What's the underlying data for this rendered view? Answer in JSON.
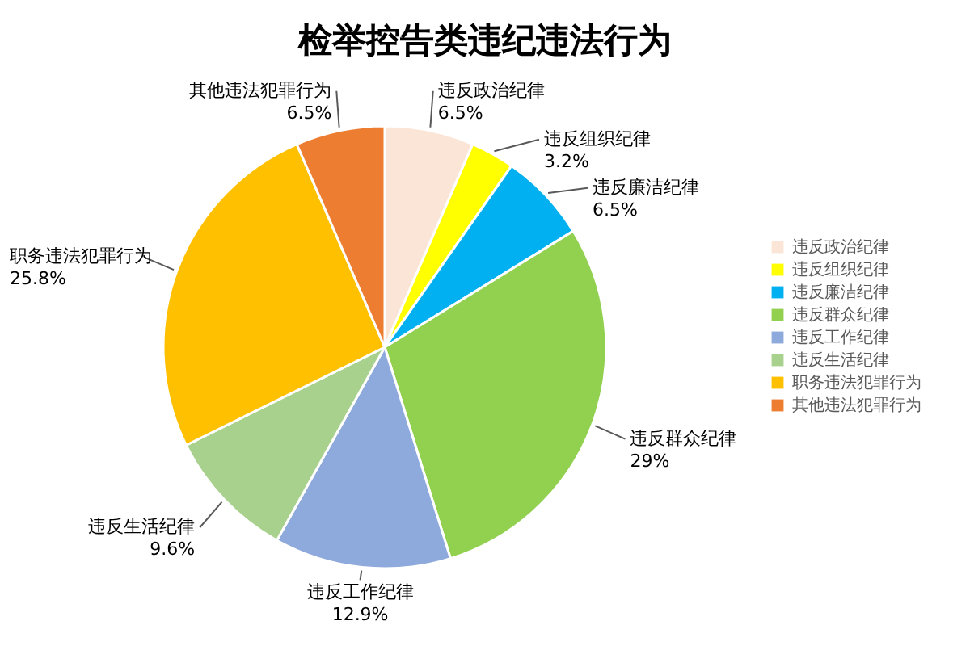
{
  "chart_data": {
    "type": "pie",
    "title": "检举控告类违纪违法行为",
    "categories": [
      "违反政治纪律",
      "违反组织纪律",
      "违反廉洁纪律",
      "违反群众纪律",
      "违反工作纪律",
      "违反生活纪律",
      "职务违法犯罪行为",
      "其他违法犯罪行为"
    ],
    "values": [
      6.5,
      3.2,
      6.5,
      29,
      12.9,
      9.6,
      25.8,
      6.5
    ],
    "colors": [
      "#fbe5d6",
      "#ffff00",
      "#00b0f0",
      "#92d050",
      "#8ea9db",
      "#a9d18e",
      "#ffc000",
      "#ed7d31"
    ],
    "value_labels": [
      "6.5%",
      "3.2%",
      "6.5%",
      "29%",
      "12.9%",
      "9.6%",
      "25.8%",
      "6.5%"
    ],
    "legend": "right"
  }
}
